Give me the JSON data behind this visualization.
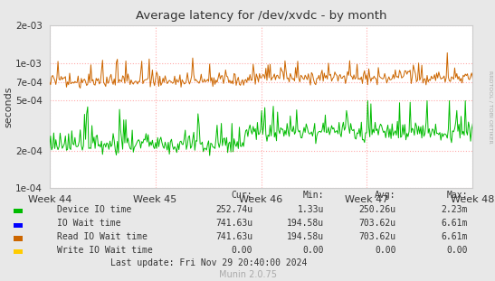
{
  "title": "Average latency for /dev/xvdc - by month",
  "ylabel": "seconds",
  "xlabel_ticks": [
    "Week 44",
    "Week 45",
    "Week 46",
    "Week 47",
    "Week 48"
  ],
  "ymin": 0.0001,
  "ymax": 0.002,
  "yticks": [
    0.0001,
    0.0002,
    0.0005,
    0.0007,
    0.001,
    0.002
  ],
  "ytick_labels": [
    "1e-04",
    "2e-04",
    "5e-04",
    "7e-04",
    "1e-03",
    "2e-03"
  ],
  "bg_color": "#e8e8e8",
  "plot_bg_color": "#ffffff",
  "grid_color": "#ffaaaa",
  "watermark": "RRDTOOL / TOBI OETIKER",
  "munin_text": "Munin 2.0.75",
  "last_update": "Last update: Fri Nov 29 20:40:00 2024",
  "legend_entries": [
    {
      "label": "Device IO time",
      "color": "#00bb00"
    },
    {
      "label": "IO Wait time",
      "color": "#0000ff"
    },
    {
      "label": "Read IO Wait time",
      "color": "#cc6600"
    },
    {
      "label": "Write IO Wait time",
      "color": "#ffcc00"
    }
  ],
  "legend_headers": [
    "Cur:",
    "Min:",
    "Avg:",
    "Max:"
  ],
  "legend_rows": [
    [
      "252.74u",
      "1.33u",
      "250.26u",
      "2.23m"
    ],
    [
      "741.63u",
      "194.58u",
      "703.62u",
      "6.61m"
    ],
    [
      "741.63u",
      "194.58u",
      "703.62u",
      "6.61m"
    ],
    [
      "0.00",
      "0.00",
      "0.00",
      "0.00"
    ]
  ],
  "n_points": 400,
  "seed": 7
}
